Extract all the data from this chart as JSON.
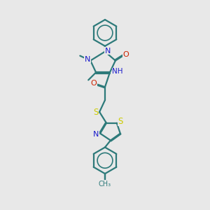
{
  "bg_color": "#e8e8e8",
  "bond_color": "#2d7a7a",
  "N_color": "#1a1acc",
  "O_color": "#cc2200",
  "S_color": "#cccc00",
  "line_width": 1.6,
  "fig_width": 3.0,
  "fig_height": 3.0,
  "dpi": 100,
  "xlim": [
    2.5,
    8.5
  ],
  "ylim": [
    0.5,
    15.5
  ]
}
